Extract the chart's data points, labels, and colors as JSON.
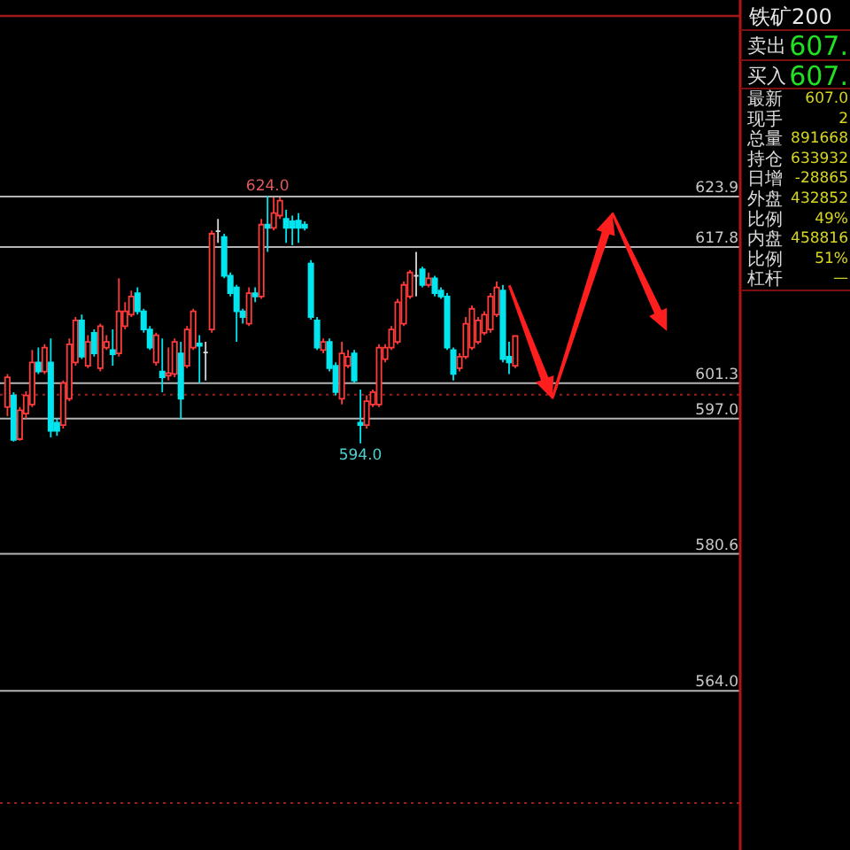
{
  "chart_data": [
    {
      "type": "candlestick",
      "categories": [
        null,
        null,
        null,
        null,
        null,
        null,
        null,
        null,
        null,
        null,
        null,
        null,
        null,
        null,
        null,
        null,
        null,
        null,
        null,
        null,
        null,
        null,
        null,
        null,
        null,
        null,
        null,
        null,
        null,
        null,
        null,
        null,
        null,
        null,
        null,
        null,
        null,
        null,
        null,
        null,
        null,
        null,
        null,
        null,
        null,
        null,
        null,
        null,
        null,
        null,
        null,
        null,
        null,
        null,
        null,
        null,
        null,
        null,
        null,
        null,
        null,
        null,
        null,
        null,
        null,
        null,
        null,
        null,
        null,
        null,
        null,
        null,
        null,
        null,
        null,
        null,
        null,
        null,
        null,
        null,
        null,
        null,
        null
      ],
      "ohlc": [
        [
          598.4,
          602.4,
          597.3,
          602.0
        ],
        [
          599.8,
          600.2,
          594.2,
          594.4
        ],
        [
          594.5,
          598.4,
          594.3,
          598.0
        ],
        [
          597.6,
          600.3,
          597.0,
          599.8
        ],
        [
          598.7,
          605.3,
          598.4,
          603.8
        ],
        [
          603.8,
          605.6,
          602.4,
          602.7
        ],
        [
          602.7,
          606.0,
          602.4,
          605.6
        ],
        [
          603.8,
          606.7,
          594.7,
          595.5
        ],
        [
          596.5,
          597.0,
          594.9,
          595.5
        ],
        [
          596.2,
          601.6,
          595.8,
          601.3
        ],
        [
          599.4,
          606.7,
          599.1,
          606.0
        ],
        [
          603.8,
          609.3,
          603.4,
          608.9
        ],
        [
          608.9,
          609.6,
          604.2,
          604.5
        ],
        [
          603.4,
          607.1,
          603.1,
          606.3
        ],
        [
          607.4,
          607.8,
          604.5,
          604.9
        ],
        [
          603.1,
          608.5,
          602.7,
          608.2
        ],
        [
          605.6,
          607.1,
          605.3,
          606.3
        ],
        [
          605.3,
          607.8,
          603.4,
          604.8
        ],
        [
          604.9,
          614.0,
          604.5,
          610.0
        ],
        [
          608.2,
          611.1,
          607.8,
          610.0
        ],
        [
          609.6,
          612.5,
          609.3,
          611.8
        ],
        [
          612.2,
          612.9,
          609.6,
          610.0
        ],
        [
          610.0,
          610.3,
          607.4,
          607.8
        ],
        [
          607.8,
          608.2,
          605.3,
          605.6
        ],
        [
          603.8,
          607.4,
          603.4,
          607.1
        ],
        [
          602.7,
          606.7,
          600.2,
          602.0
        ],
        [
          602.2,
          605.6,
          601.6,
          602.5
        ],
        [
          602.4,
          606.7,
          602.0,
          606.3
        ],
        [
          604.9,
          606.3,
          596.9,
          599.4
        ],
        [
          603.4,
          608.2,
          603.1,
          607.8
        ],
        [
          605.6,
          610.3,
          605.3,
          610.0
        ],
        [
          606.1,
          607.1,
          601.3,
          605.8
        ],
        [
          605.0,
          606.3,
          601.6,
          605.0
        ],
        [
          607.8,
          619.8,
          607.4,
          619.4
        ],
        [
          619.7,
          621.2,
          618.3,
          619.7
        ],
        [
          619.0,
          619.4,
          614.0,
          614.3
        ],
        [
          614.3,
          614.7,
          611.8,
          612.2
        ],
        [
          612.9,
          613.2,
          606.3,
          610.0
        ],
        [
          610.0,
          610.3,
          608.5,
          609.3
        ],
        [
          608.5,
          612.9,
          608.2,
          612.2
        ],
        [
          612.2,
          612.9,
          611.1,
          611.8
        ],
        [
          611.8,
          621.2,
          611.5,
          620.5
        ],
        [
          620.5,
          624.0,
          617.2,
          620.1
        ],
        [
          620.1,
          623.8,
          619.8,
          621.9
        ],
        [
          621.6,
          623.8,
          621.2,
          623.4
        ],
        [
          621.2,
          622.3,
          618.3,
          620.1
        ],
        [
          620.9,
          621.6,
          618.0,
          620.1
        ],
        [
          621.0,
          621.9,
          618.3,
          620.1
        ],
        [
          620.5,
          620.9,
          619.8,
          620.1
        ],
        [
          615.8,
          616.2,
          609.0,
          609.3
        ],
        [
          608.9,
          609.3,
          605.3,
          605.6
        ],
        [
          605.3,
          606.7,
          604.9,
          606.3
        ],
        [
          606.3,
          606.7,
          602.7,
          603.1
        ],
        [
          603.4,
          603.8,
          599.8,
          600.2
        ],
        [
          599.4,
          606.3,
          598.7,
          604.9
        ],
        [
          603.4,
          605.3,
          603.1,
          604.5
        ],
        [
          604.9,
          605.3,
          601.3,
          601.6
        ],
        [
          596.5,
          600.5,
          594.0,
          596.2
        ],
        [
          596.2,
          599.8,
          595.8,
          599.1
        ],
        [
          598.7,
          600.5,
          598.4,
          600.2
        ],
        [
          598.7,
          606.0,
          598.4,
          605.6
        ],
        [
          604.2,
          606.0,
          603.8,
          605.6
        ],
        [
          605.6,
          608.2,
          605.3,
          607.8
        ],
        [
          606.3,
          611.5,
          606.0,
          611.1
        ],
        [
          608.5,
          613.6,
          608.2,
          613.2
        ],
        [
          611.8,
          615.0,
          611.5,
          614.7
        ],
        [
          614.3,
          617.2,
          611.8,
          614.3
        ],
        [
          615.1,
          615.4,
          612.9,
          613.2
        ],
        [
          613.2,
          614.7,
          612.9,
          614.0
        ],
        [
          614.0,
          614.3,
          611.8,
          612.2
        ],
        [
          612.5,
          612.9,
          611.5,
          611.8
        ],
        [
          611.8,
          612.2,
          605.3,
          605.6
        ],
        [
          605.3,
          605.6,
          601.6,
          602.4
        ],
        [
          603.1,
          604.9,
          602.7,
          604.5
        ],
        [
          604.5,
          609.3,
          604.2,
          608.5
        ],
        [
          605.6,
          610.7,
          605.3,
          610.3
        ],
        [
          606.3,
          609.3,
          606.0,
          608.9
        ],
        [
          607.4,
          610.0,
          607.1,
          609.6
        ],
        [
          607.8,
          612.2,
          607.4,
          611.8
        ],
        [
          609.6,
          613.6,
          609.3,
          612.9
        ],
        [
          612.5,
          613.2,
          603.8,
          604.2
        ],
        [
          604.5,
          606.3,
          602.4,
          603.8
        ],
        [
          603.4,
          607.1,
          603.1,
          607.0
        ]
      ],
      "colors": [
        "#ff3b3b",
        "#00e5ee",
        "#ff3b3b",
        "#ff3b3b",
        "#ff3b3b",
        "#00e5ee",
        "#ff3b3b",
        "#00e5ee",
        "#00e5ee",
        "#ff3b3b",
        "#ff3b3b",
        "#ff3b3b",
        "#00e5ee",
        "#ff3b3b",
        "#00e5ee",
        "#ff3b3b",
        "#ff3b3b",
        "#00e5ee",
        "#ff3b3b",
        "#ff3b3b",
        "#ff3b3b",
        "#00e5ee",
        "#00e5ee",
        "#00e5ee",
        "#ff3b3b",
        "#00e5ee",
        "#ff3b3b",
        "#ff3b3b",
        "#00e5ee",
        "#ff3b3b",
        "#ff3b3b",
        "#00e5ee",
        "#d8d8d8",
        "#ff3b3b",
        "#d8d8d8",
        "#00e5ee",
        "#00e5ee",
        "#00e5ee",
        "#00e5ee",
        "#ff3b3b",
        "#00e5ee",
        "#ff3b3b",
        "#00e5ee",
        "#ff3b3b",
        "#ff3b3b",
        "#00e5ee",
        "#00e5ee",
        "#00e5ee",
        "#00e5ee",
        "#00e5ee",
        "#00e5ee",
        "#ff3b3b",
        "#00e5ee",
        "#00e5ee",
        "#ff3b3b",
        "#ff3b3b",
        "#00e5ee",
        "#00e5ee",
        "#ff3b3b",
        "#ff3b3b",
        "#ff3b3b",
        "#ff3b3b",
        "#ff3b3b",
        "#ff3b3b",
        "#ff3b3b",
        "#ff3b3b",
        "#d8d8d8",
        "#00e5ee",
        "#ff3b3b",
        "#00e5ee",
        "#00e5ee",
        "#00e5ee",
        "#00e5ee",
        "#ff3b3b",
        "#ff3b3b",
        "#ff3b3b",
        "#ff3b3b",
        "#ff3b3b",
        "#ff3b3b",
        "#ff3b3b",
        "#00e5ee",
        "#00e5ee",
        "#ff3b3b"
      ],
      "ylim": [
        544.7,
        645.8
      ],
      "ref_lines": [
        {
          "axis": "y",
          "value": 623.9,
          "label": "623.9",
          "color": "#b4b4b4"
        },
        {
          "axis": "y",
          "value": 617.8,
          "label": "617.8",
          "color": "#b4b4b4"
        },
        {
          "axis": "y",
          "value": 601.3,
          "label": "601.3",
          "color": "#b4b4b4"
        },
        {
          "axis": "y",
          "value": 597.0,
          "label": "597.0",
          "color": "#b4b4b4"
        },
        {
          "axis": "y",
          "value": 580.6,
          "label": "580.6",
          "color": "#b4b4b4"
        },
        {
          "axis": "y",
          "value": 564.0,
          "label": "564.0",
          "color": "#b4b4b4"
        },
        {
          "axis": "y",
          "value": 599.9,
          "label": null,
          "color": "#9a1c1c",
          "line_style": "dotted"
        },
        {
          "axis": "y",
          "value": 550.4,
          "label": null,
          "color": "#9a1c1c",
          "line_style": "dotted"
        }
      ],
      "annotations": [
        {
          "text": "624.0",
          "y": 624.0
        },
        {
          "text": "594.0",
          "y": 594.0
        }
      ]
    },
    {
      "type": "other",
      "title": "铁矿200",
      "annotations": [
        "卖出",
        "607.",
        "买入",
        "607.",
        "最新",
        "607.0",
        "现手",
        "2",
        "总量",
        "891668",
        "持仓",
        "633932",
        "日增",
        "-28865",
        "外盘",
        "432852",
        "比例",
        "49%",
        "内盘",
        "458816",
        "比例",
        "51%",
        "杠杆",
        "—"
      ]
    }
  ]
}
